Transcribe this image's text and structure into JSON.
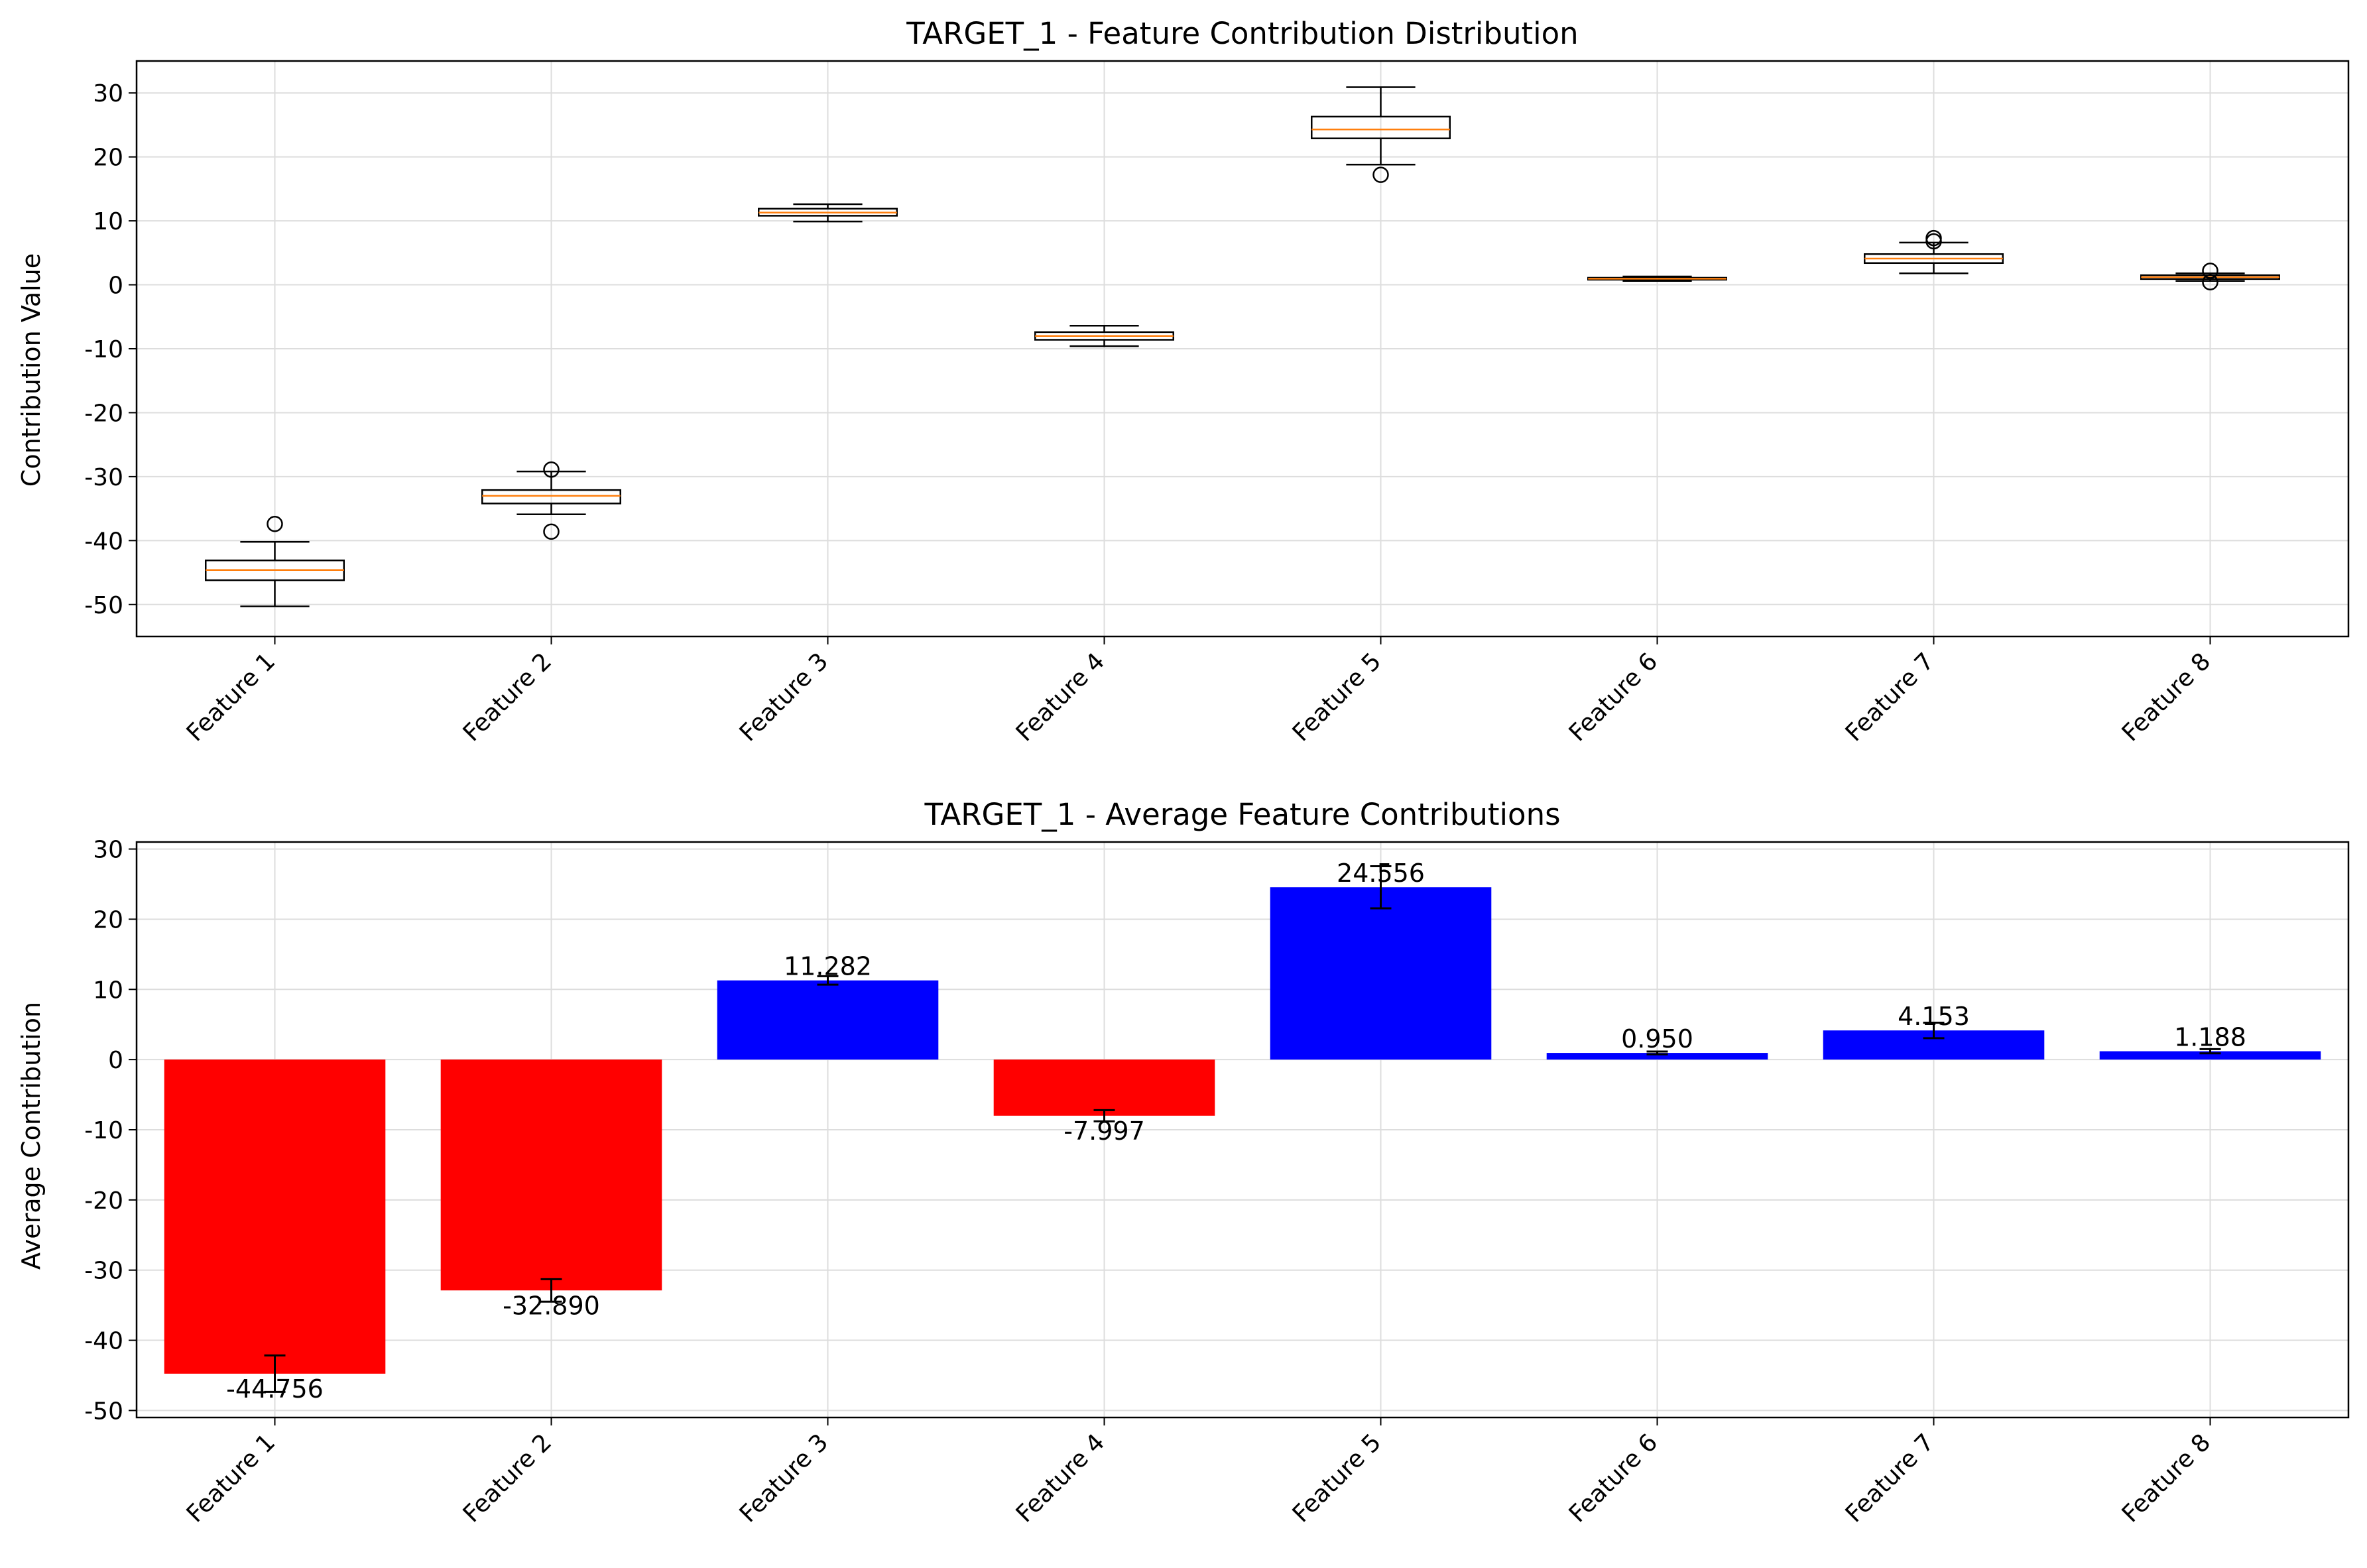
{
  "chart_data": [
    {
      "type": "box",
      "title": "TARGET_1 - Feature Contribution Distribution",
      "ylabel": "Contribution Value",
      "xlabel": "",
      "ylim": [
        -55,
        35
      ],
      "yticks": [
        30,
        20,
        10,
        0,
        -10,
        -20,
        -30,
        -40,
        -50
      ],
      "grid": true,
      "categories": [
        "Feature 1",
        "Feature 2",
        "Feature 3",
        "Feature 4",
        "Feature 5",
        "Feature 6",
        "Feature 7",
        "Feature 8"
      ],
      "boxes": [
        {
          "whisker_low": -50.3,
          "q1": -46.2,
          "median": -44.6,
          "q3": -43.1,
          "whisker_high": -40.2,
          "outliers": [
            -37.4
          ]
        },
        {
          "whisker_low": -35.9,
          "q1": -34.2,
          "median": -33.0,
          "q3": -32.1,
          "whisker_high": -29.2,
          "outliers": [
            -28.9,
            -38.6
          ]
        },
        {
          "whisker_low": 9.9,
          "q1": 10.8,
          "median": 11.3,
          "q3": 11.9,
          "whisker_high": 12.6,
          "outliers": []
        },
        {
          "whisker_low": -9.6,
          "q1": -8.6,
          "median": -8.0,
          "q3": -7.4,
          "whisker_high": -6.4,
          "outliers": []
        },
        {
          "whisker_low": 18.8,
          "q1": 22.9,
          "median": 24.3,
          "q3": 26.3,
          "whisker_high": 30.9,
          "outliers": [
            17.2
          ]
        },
        {
          "whisker_low": 0.6,
          "q1": 0.8,
          "median": 0.95,
          "q3": 1.1,
          "whisker_high": 1.3,
          "outliers": []
        },
        {
          "whisker_low": 1.8,
          "q1": 3.4,
          "median": 4.1,
          "q3": 4.8,
          "whisker_high": 6.6,
          "outliers": [
            6.8,
            7.3
          ]
        },
        {
          "whisker_low": 0.6,
          "q1": 0.9,
          "median": 1.2,
          "q3": 1.5,
          "whisker_high": 1.8,
          "outliers": [
            2.2,
            0.4
          ]
        }
      ],
      "colors": {
        "box": "#000000",
        "median": "#ff7f0e"
      }
    },
    {
      "type": "bar",
      "title": "TARGET_1 - Average Feature Contributions",
      "ylabel": "Average Contribution",
      "xlabel": "",
      "ylim": [
        -51,
        31
      ],
      "yticks": [
        30,
        20,
        10,
        0,
        -10,
        -20,
        -30,
        -40,
        -50
      ],
      "grid": true,
      "categories": [
        "Feature 1",
        "Feature 2",
        "Feature 3",
        "Feature 4",
        "Feature 5",
        "Feature 6",
        "Feature 7",
        "Feature 8"
      ],
      "values": [
        -44.756,
        -32.89,
        11.282,
        -7.997,
        24.556,
        0.95,
        4.153,
        1.188
      ],
      "errors": [
        2.6,
        1.6,
        0.6,
        0.8,
        3.0,
        0.2,
        1.1,
        0.3
      ],
      "value_labels": [
        "-44.756",
        "-32.890",
        "11.282",
        "-7.997",
        "24.556",
        "0.950",
        "4.153",
        "1.188"
      ],
      "colors": {
        "positive": "#0000ff",
        "negative": "#ff0000"
      }
    }
  ]
}
